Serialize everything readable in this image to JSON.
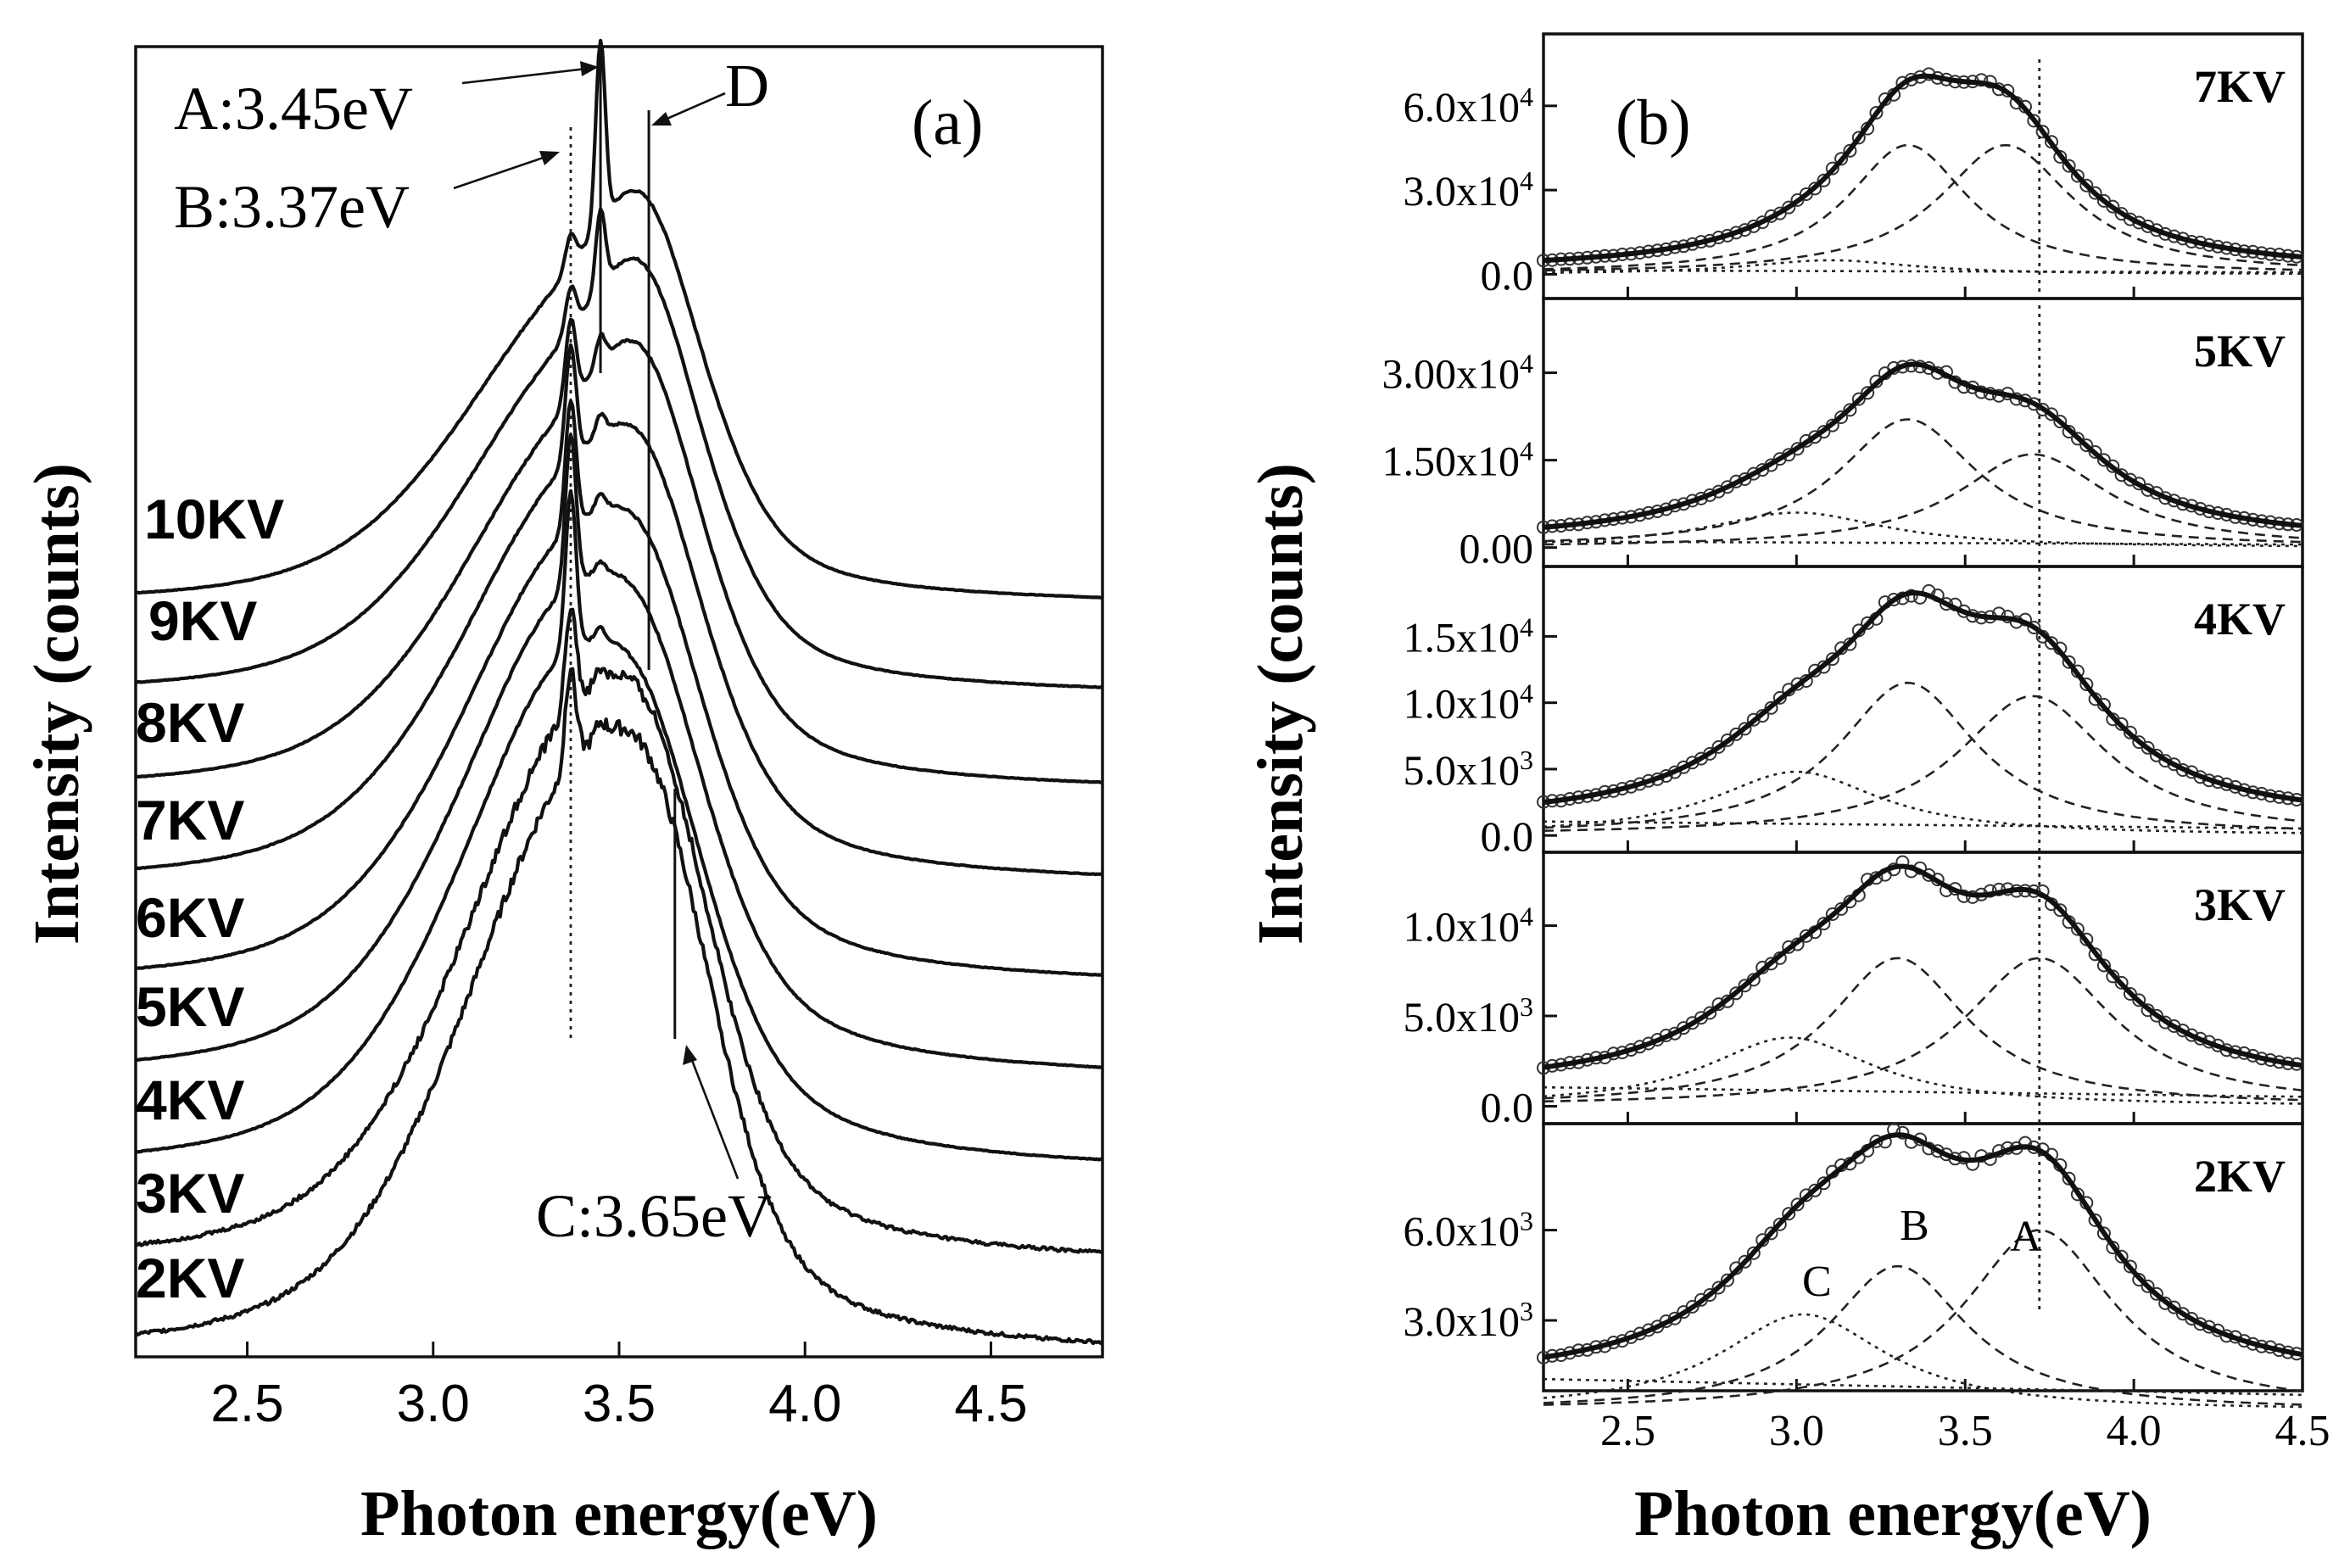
{
  "colors": {
    "ink": "#111111",
    "background": "#ffffff"
  },
  "panel_a": {
    "panel_label": "(a)",
    "ylabel": "Intensity (counts)",
    "xlabel": "Photon energy(eV)",
    "annotations": {
      "A": "A:3.45eV",
      "B": "B:3.37eV",
      "C": "C:3.65eV",
      "D": "D"
    }
  },
  "panel_b": {
    "panel_label": "(b)",
    "ylabel": "Intensity (counts)",
    "xlabel": "Photon energy(eV)",
    "peak_labels": {
      "A": "A",
      "B": "B",
      "C": "C"
    }
  },
  "chart_data": [
    {
      "type": "line",
      "xlabel": "Photon energy(eV)",
      "ylabel": "Intensity (counts)",
      "xlim": [
        2.2,
        4.8
      ],
      "x_ticks": [
        "2.5",
        "3.0",
        "3.5",
        "4.0",
        "4.5"
      ],
      "y_ticks_shown": false,
      "grid": false,
      "stacked_offset": true,
      "series": [
        {
          "name": "10KV",
          "peak_b": 0.8,
          "shoulder_a": 0.78,
          "shoulder_d": 0.72,
          "sharp_a": 0.45,
          "sharp_b": 0.08,
          "tail": 0.0
        },
        {
          "name": "9KV",
          "peak_b": 0.82,
          "shoulder_a": 0.74,
          "shoulder_d": 0.68,
          "sharp_a": 0.18,
          "sharp_b": 0.1,
          "tail": 0.0
        },
        {
          "name": "8KV",
          "peak_b": 0.85,
          "shoulder_a": 0.7,
          "shoulder_d": 0.6,
          "sharp_a": 0.06,
          "sharp_b": 0.18,
          "tail": 0.0
        },
        {
          "name": "7KV",
          "peak_b": 0.9,
          "shoulder_a": 0.62,
          "shoulder_d": 0.45,
          "sharp_a": 0.04,
          "sharp_b": 0.24,
          "tail": 0.0
        },
        {
          "name": "6KV",
          "peak_b": 0.92,
          "shoulder_a": 0.55,
          "shoulder_d": 0.35,
          "sharp_a": 0.03,
          "sharp_b": 0.25,
          "tail": 0.0
        },
        {
          "name": "5KV",
          "peak_b": 0.95,
          "shoulder_a": 0.52,
          "shoulder_d": 0.28,
          "sharp_a": 0.02,
          "sharp_b": 0.28,
          "tail": 0.0
        },
        {
          "name": "4KV",
          "peak_b": 0.97,
          "shoulder_a": 0.5,
          "shoulder_d": 0.25,
          "sharp_a": 0.02,
          "sharp_b": 0.28,
          "tail": 0.0
        },
        {
          "name": "3KV",
          "peak_b": 0.98,
          "shoulder_a": 0.78,
          "shoulder_d": 0.2,
          "sharp_a": 0.02,
          "sharp_b": 0.18,
          "tail": 0.0
        },
        {
          "name": "2KV",
          "peak_b": 1.0,
          "shoulder_a": 0.86,
          "shoulder_d": 0.15,
          "sharp_a": 0.02,
          "sharp_b": 0.16,
          "tail": 0.0
        }
      ],
      "reference_lines": [
        {
          "label": "B:3.37eV",
          "x": 3.37,
          "style": "dotted"
        },
        {
          "label": "A:3.45eV",
          "x": 3.45,
          "style": "solid"
        },
        {
          "label": "D",
          "x": 3.58,
          "style": "solid"
        },
        {
          "label": "C:3.65eV",
          "x": 3.65,
          "style": "solid"
        }
      ]
    },
    {
      "type": "line",
      "xlabel": "Photon energy(eV)",
      "ylabel": "Intensity (counts)",
      "xlim": [
        2.25,
        4.5
      ],
      "x_ticks": [
        "2.5",
        "3.0",
        "3.5",
        "4.0",
        "4.5"
      ],
      "reference_line_x": 3.72,
      "subplots": [
        {
          "name": "7KV",
          "ylim": [
            -5000,
            82000
          ],
          "y_ticks": [
            0,
            30000,
            60000
          ],
          "y_tick_labels": [
            "0.0",
            "3.0x10^4",
            "6.0x10^4"
          ],
          "peaks": [
            {
              "center": 3.33,
              "amp": 46000,
              "width": 0.22
            },
            {
              "center": 3.62,
              "amp": 46000,
              "width": 0.24
            },
            {
              "center": 3.1,
              "amp": 5000,
              "width": 0.3
            }
          ],
          "background": 2000,
          "fit_max": 72000
        },
        {
          "name": "5KV",
          "ylim": [
            -1500,
            41000
          ],
          "y_ticks": [
            0,
            15000,
            30000
          ],
          "y_tick_labels": [
            "0.00",
            "1.50x10^4",
            "3.00x10^4"
          ],
          "peaks": [
            {
              "center": 3.33,
              "amp": 22000,
              "width": 0.25
            },
            {
              "center": 3.7,
              "amp": 16000,
              "width": 0.27
            },
            {
              "center": 3.0,
              "amp": 6000,
              "width": 0.32
            }
          ],
          "background": 1500,
          "fit_max": 31000
        },
        {
          "name": "4KV",
          "ylim": [
            -500,
            19500
          ],
          "y_ticks": [
            0,
            5000,
            10000,
            15000
          ],
          "y_tick_labels": [
            "0.0",
            "5.0x10^3",
            "1.0x10^4",
            "1.5x10^4"
          ],
          "peaks": [
            {
              "center": 3.33,
              "amp": 11500,
              "width": 0.25
            },
            {
              "center": 3.7,
              "amp": 10500,
              "width": 0.27
            },
            {
              "center": 3.0,
              "amp": 4800,
              "width": 0.3
            }
          ],
          "background": 1500,
          "fit_max": 17000
        },
        {
          "name": "3KV",
          "ylim": [
            -400,
            13500
          ],
          "y_ticks": [
            0,
            5000,
            10000
          ],
          "y_tick_labels": [
            "0.0",
            "5.0x10^3",
            "1.0x10^4"
          ],
          "peaks": [
            {
              "center": 3.3,
              "amp": 8200,
              "width": 0.25
            },
            {
              "center": 3.72,
              "amp": 8200,
              "width": 0.27
            },
            {
              "center": 2.98,
              "amp": 3800,
              "width": 0.3
            }
          ],
          "background": 1500,
          "fit_max": 12000
        },
        {
          "name": "2KV",
          "ylim": [
            1000,
            9200
          ],
          "y_ticks": [
            3000,
            6000
          ],
          "y_tick_labels": [
            "3.0x10^3",
            "6.0x10^3"
          ],
          "peaks": [
            {
              "center": 3.3,
              "amp": 4800,
              "width": 0.25
            },
            {
              "center": 3.72,
              "amp": 6000,
              "width": 0.27
            },
            {
              "center": 3.02,
              "amp": 3200,
              "width": 0.3
            }
          ],
          "background": 1500,
          "fit_max": 7800
        }
      ]
    }
  ]
}
